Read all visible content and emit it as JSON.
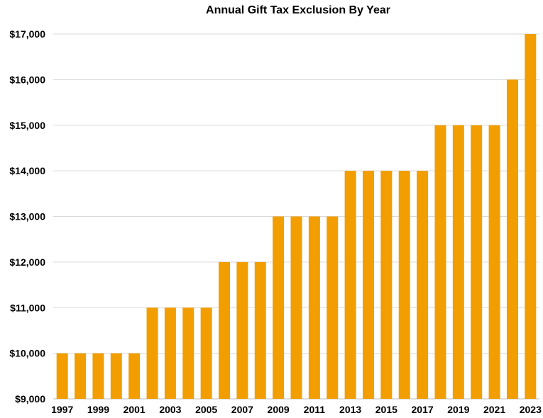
{
  "chart_data": {
    "type": "bar",
    "title": "Annual Gift Tax Exclusion By Year",
    "xlabel": "",
    "ylabel": "",
    "categories": [
      "1997",
      "1998",
      "1999",
      "2000",
      "2001",
      "2002",
      "2003",
      "2004",
      "2005",
      "2006",
      "2007",
      "2008",
      "2009",
      "2010",
      "2011",
      "2012",
      "2013",
      "2014",
      "2015",
      "2016",
      "2017",
      "2018",
      "2019",
      "2020",
      "2021",
      "2022",
      "2023"
    ],
    "values": [
      10000,
      10000,
      10000,
      10000,
      10000,
      11000,
      11000,
      11000,
      11000,
      12000,
      12000,
      12000,
      13000,
      13000,
      13000,
      13000,
      14000,
      14000,
      14000,
      14000,
      14000,
      15000,
      15000,
      15000,
      15000,
      16000,
      17000
    ],
    "x_tick_labels": [
      "1997",
      "1999",
      "2001",
      "2003",
      "2005",
      "2007",
      "2009",
      "2011",
      "2013",
      "2015",
      "2017",
      "2019",
      "2021",
      "2023"
    ],
    "y_tick_labels": [
      "$9,000",
      "$10,000",
      "$11,000",
      "$12,000",
      "$13,000",
      "$14,000",
      "$15,000",
      "$16,000",
      "$17,000"
    ],
    "y_ticks": [
      9000,
      10000,
      11000,
      12000,
      13000,
      14000,
      15000,
      16000,
      17000
    ],
    "ylim": [
      9000,
      17000
    ],
    "grid": true,
    "legend": "none",
    "bar_color": "#F29E00"
  }
}
